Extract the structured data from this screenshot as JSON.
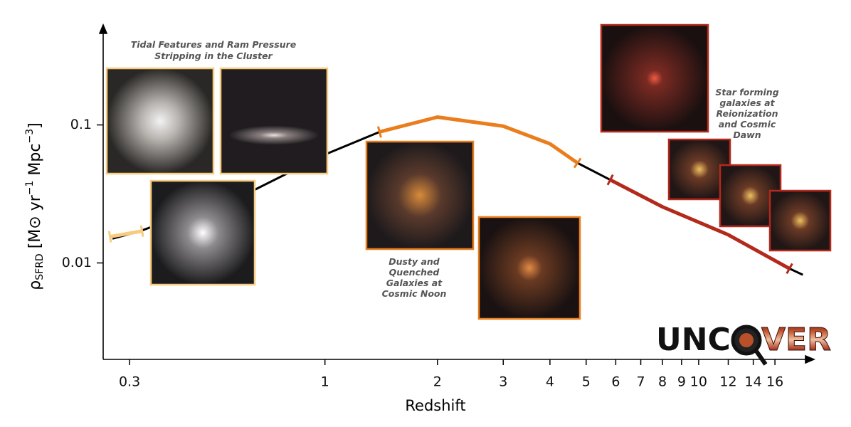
{
  "chart_data": {
    "type": "line",
    "xlabel": "Redshift",
    "ylabel": {
      "symbol": "ρ",
      "sub": "SFRD",
      "unit1": " [M⊙ yr",
      "exp1": "−1",
      "unit2": " Mpc",
      "exp2": "−3",
      "close": "]"
    },
    "xscale": "log",
    "yscale": "log",
    "xlim": [
      0.255,
      20
    ],
    "ylim": [
      0.002,
      0.5
    ],
    "xticks": [
      0.3,
      1,
      2,
      3,
      4,
      5,
      6,
      7,
      8,
      9,
      10,
      12,
      14,
      16
    ],
    "yticks": [
      0.01,
      0.1
    ],
    "series": [
      {
        "color": "#000000",
        "x": [
          0.27,
          0.32,
          0.65,
          1,
          1.4,
          2,
          3,
          4,
          4.74,
          5.8,
          8,
          12,
          17.5,
          19
        ],
        "values": [
          0.015,
          0.017,
          0.034,
          0.061,
          0.089,
          0.114,
          0.098,
          0.073,
          0.053,
          0.04,
          0.0255,
          0.016,
          0.0091,
          0.0082
        ]
      },
      {
        "color": "#f7cc7f",
        "x": [
          0.266,
          0.324
        ],
        "values": [
          0.0155,
          0.017
        ]
      },
      {
        "color": "#ea7d1c",
        "x": [
          1.4,
          2,
          3,
          4,
          4.74
        ],
        "values": [
          0.089,
          0.114,
          0.098,
          0.073,
          0.053
        ]
      },
      {
        "color": "#b3291b",
        "x": [
          5.8,
          8,
          12,
          17.5
        ],
        "values": [
          0.04,
          0.0255,
          0.016,
          0.0091
        ]
      }
    ],
    "annotations": [
      {
        "lines": [
          "Tidal Features and Ram Pressure",
          "Stripping in the Cluster"
        ]
      },
      {
        "lines": [
          "Dusty and",
          "Quenched",
          "Galaxies at",
          "Cosmic Noon"
        ]
      },
      {
        "lines": [
          "Star forming",
          "galaxies at",
          "Reionization",
          "and Cosmic",
          "Dawn"
        ]
      }
    ],
    "logo": [
      "UNC",
      "VER"
    ]
  }
}
